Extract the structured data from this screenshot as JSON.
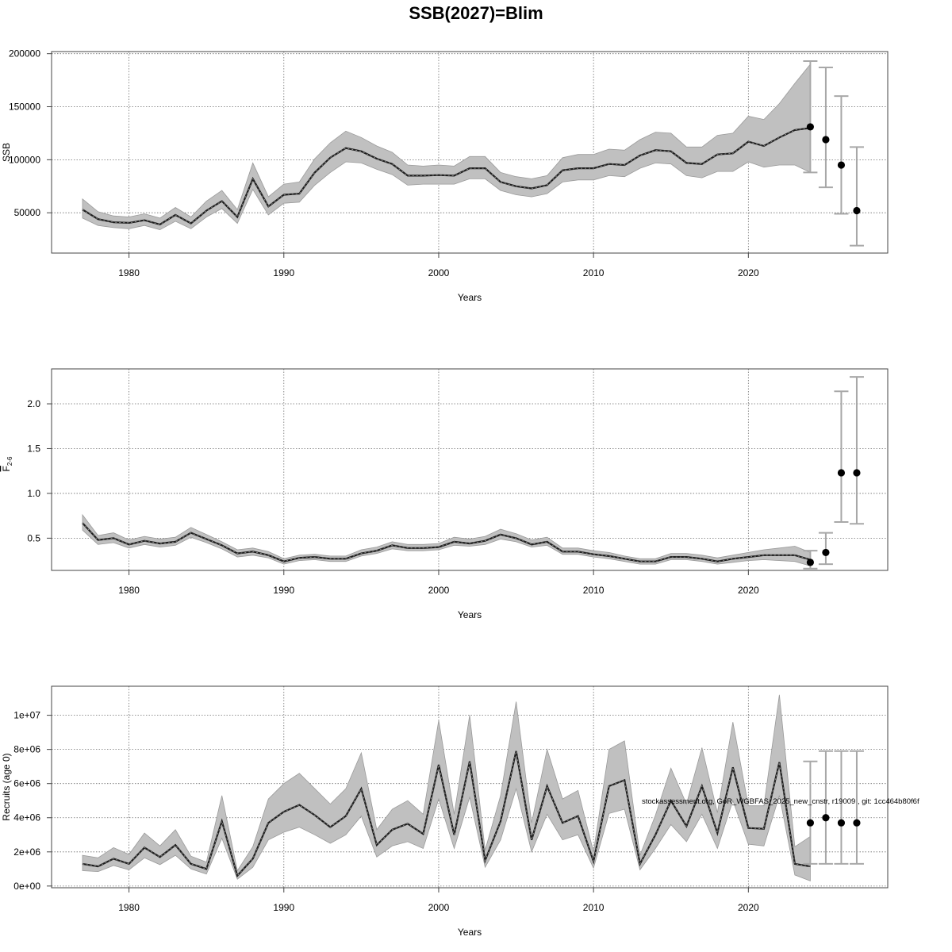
{
  "title": "SSB(2027)=Blim",
  "footnote": "stockassessment.org, GoR_WGBFAS_2025_new_cnstr, r19009 , git: 1cc464b80f6f",
  "chart_data": [
    {
      "type": "line",
      "ylabel": "SSB",
      "xlabel": "Years",
      "xlim": [
        1975,
        2029
      ],
      "ylim": [
        12000,
        202000
      ],
      "x_ticks": [
        1980,
        1990,
        2000,
        2010,
        2020
      ],
      "y_ticks": [
        50000,
        100000,
        150000,
        200000
      ],
      "y_tick_labels": [
        "50000",
        "100000",
        "150000",
        "200000"
      ],
      "grid": true,
      "years": [
        1977,
        1978,
        1979,
        1980,
        1981,
        1982,
        1983,
        1984,
        1985,
        1986,
        1987,
        1988,
        1989,
        1990,
        1991,
        1992,
        1993,
        1994,
        1995,
        1996,
        1997,
        1998,
        1999,
        2000,
        2001,
        2002,
        2003,
        2004,
        2005,
        2006,
        2007,
        2008,
        2009,
        2010,
        2011,
        2012,
        2013,
        2014,
        2015,
        2016,
        2017,
        2018,
        2019,
        2020,
        2021,
        2022,
        2023,
        2024
      ],
      "estimate": [
        53000,
        44000,
        41000,
        40500,
        43000,
        39000,
        48000,
        40000,
        52000,
        61000,
        46000,
        82000,
        56000,
        67000,
        68000,
        88000,
        102000,
        111000,
        108000,
        101000,
        96000,
        85000,
        85000,
        85500,
        85000,
        92000,
        92000,
        79000,
        75000,
        73000,
        76000,
        90000,
        92000,
        92000,
        96000,
        95000,
        104000,
        109000,
        108000,
        97000,
        96000,
        105000,
        106000,
        117000,
        113000,
        121000,
        128000,
        130000
      ],
      "lower": [
        45000,
        38000,
        36000,
        35000,
        38000,
        34000,
        42000,
        35000,
        46000,
        54000,
        40000,
        72000,
        48000,
        59000,
        60000,
        76000,
        88000,
        98000,
        97000,
        91000,
        86000,
        76000,
        77000,
        77000,
        77000,
        82000,
        82000,
        71000,
        67000,
        65000,
        68000,
        79000,
        81000,
        81000,
        85000,
        84000,
        92000,
        97000,
        96000,
        85000,
        83000,
        89000,
        89000,
        98000,
        93000,
        95000,
        95000,
        88000
      ],
      "upper": [
        63000,
        51000,
        47000,
        46000,
        49000,
        45000,
        55000,
        46000,
        61000,
        71000,
        53000,
        97000,
        65000,
        77000,
        79000,
        101000,
        116000,
        127000,
        121000,
        113000,
        107000,
        95000,
        94000,
        95000,
        94000,
        103000,
        103000,
        88000,
        84000,
        82000,
        85000,
        102000,
        105000,
        105000,
        110000,
        109000,
        119000,
        126000,
        125000,
        112000,
        112000,
        123000,
        125000,
        141000,
        138000,
        153000,
        172000,
        190000
      ],
      "forecast": {
        "years": [
          2024,
          2025,
          2026,
          2027
        ],
        "median": [
          131000,
          119000,
          95000,
          52000
        ],
        "lower": [
          88000,
          74000,
          49000,
          19000
        ],
        "upper": [
          193000,
          187000,
          160000,
          112000
        ]
      }
    },
    {
      "type": "line",
      "ylabel": "F2-6",
      "ylabel_main": "F",
      "ylabel_sub": "2-6",
      "xlabel": "Years",
      "xlim": [
        1975,
        2029
      ],
      "ylim": [
        0.14,
        2.39
      ],
      "x_ticks": [
        1980,
        1990,
        2000,
        2010,
        2020
      ],
      "y_ticks": [
        0.5,
        1.0,
        1.5,
        2.0
      ],
      "y_tick_labels": [
        "0.5",
        "1.0",
        "1.5",
        "2.0"
      ],
      "grid": true,
      "years": [
        1977,
        1978,
        1979,
        1980,
        1981,
        1982,
        1983,
        1984,
        1985,
        1986,
        1987,
        1988,
        1989,
        1990,
        1991,
        1992,
        1993,
        1994,
        1995,
        1996,
        1997,
        1998,
        1999,
        2000,
        2001,
        2002,
        2003,
        2004,
        2005,
        2006,
        2007,
        2008,
        2009,
        2010,
        2011,
        2012,
        2013,
        2014,
        2015,
        2016,
        2017,
        2018,
        2019,
        2020,
        2021,
        2022,
        2023,
        2024
      ],
      "estimate": [
        0.67,
        0.48,
        0.5,
        0.43,
        0.47,
        0.44,
        0.46,
        0.56,
        0.49,
        0.42,
        0.33,
        0.35,
        0.31,
        0.24,
        0.28,
        0.29,
        0.27,
        0.27,
        0.33,
        0.36,
        0.42,
        0.39,
        0.39,
        0.4,
        0.46,
        0.44,
        0.47,
        0.54,
        0.5,
        0.43,
        0.46,
        0.35,
        0.35,
        0.32,
        0.3,
        0.27,
        0.24,
        0.24,
        0.29,
        0.29,
        0.27,
        0.24,
        0.27,
        0.29,
        0.31,
        0.31,
        0.31,
        0.26
      ],
      "lower": [
        0.59,
        0.43,
        0.45,
        0.39,
        0.43,
        0.4,
        0.42,
        0.51,
        0.45,
        0.38,
        0.29,
        0.31,
        0.28,
        0.21,
        0.25,
        0.26,
        0.24,
        0.24,
        0.3,
        0.33,
        0.38,
        0.36,
        0.36,
        0.37,
        0.42,
        0.41,
        0.43,
        0.49,
        0.46,
        0.4,
        0.42,
        0.32,
        0.32,
        0.29,
        0.27,
        0.24,
        0.21,
        0.21,
        0.26,
        0.26,
        0.24,
        0.21,
        0.23,
        0.25,
        0.26,
        0.25,
        0.24,
        0.19
      ],
      "upper": [
        0.76,
        0.53,
        0.56,
        0.48,
        0.52,
        0.49,
        0.51,
        0.62,
        0.54,
        0.46,
        0.37,
        0.39,
        0.35,
        0.27,
        0.31,
        0.32,
        0.3,
        0.3,
        0.37,
        0.4,
        0.46,
        0.43,
        0.43,
        0.44,
        0.51,
        0.49,
        0.52,
        0.6,
        0.55,
        0.48,
        0.51,
        0.39,
        0.39,
        0.36,
        0.34,
        0.3,
        0.27,
        0.27,
        0.33,
        0.33,
        0.31,
        0.28,
        0.31,
        0.34,
        0.37,
        0.39,
        0.41,
        0.34
      ],
      "forecast": {
        "years": [
          2024,
          2025,
          2026,
          2027
        ],
        "median": [
          0.23,
          0.34,
          1.23,
          1.23
        ],
        "lower": [
          0.16,
          0.21,
          0.68,
          0.66
        ],
        "upper": [
          0.36,
          0.56,
          2.14,
          2.3
        ]
      }
    },
    {
      "type": "line",
      "ylabel": "Recruits (age 0)",
      "xlabel": "Years",
      "xlim": [
        1975,
        2029
      ],
      "ylim": [
        -100000,
        11700000
      ],
      "x_ticks": [
        1980,
        1990,
        2000,
        2010,
        2020
      ],
      "y_ticks": [
        0,
        2000000,
        4000000,
        6000000,
        8000000,
        10000000
      ],
      "y_tick_labels": [
        "0e+00",
        "2e+06",
        "4e+06",
        "6e+06",
        "8e+06",
        "1e+07"
      ],
      "grid": true,
      "years": [
        1977,
        1978,
        1979,
        1980,
        1981,
        1982,
        1983,
        1984,
        1985,
        1986,
        1987,
        1988,
        1989,
        1990,
        1991,
        1992,
        1993,
        1994,
        1995,
        1996,
        1997,
        1998,
        1999,
        2000,
        2001,
        2002,
        2003,
        2004,
        2005,
        2006,
        2007,
        2008,
        2009,
        2010,
        2011,
        2012,
        2013,
        2014,
        2015,
        2016,
        2017,
        2018,
        2019,
        2020,
        2021,
        2022,
        2023,
        2024
      ],
      "estimate": [
        1300000,
        1150000,
        1600000,
        1300000,
        2250000,
        1700000,
        2400000,
        1300000,
        1000000,
        3800000,
        600000,
        1600000,
        3700000,
        4350000,
        4750000,
        4150000,
        3450000,
        4100000,
        5700000,
        2400000,
        3300000,
        3650000,
        3050000,
        7100000,
        3000000,
        7300000,
        1500000,
        3800000,
        7900000,
        2700000,
        5850000,
        3700000,
        4100000,
        1450000,
        5850000,
        6200000,
        1300000,
        3000000,
        5000000,
        3500000,
        5850000,
        3100000,
        6950000,
        3400000,
        3350000,
        7250000,
        1300000,
        1150000
      ],
      "lower": [
        900000,
        850000,
        1200000,
        950000,
        1650000,
        1250000,
        1800000,
        1000000,
        700000,
        2800000,
        400000,
        1100000,
        2700000,
        3150000,
        3450000,
        3000000,
        2500000,
        3000000,
        4100000,
        1700000,
        2350000,
        2600000,
        2200000,
        5100000,
        2200000,
        5200000,
        1100000,
        2700000,
        5700000,
        2000000,
        4200000,
        2700000,
        3000000,
        1050000,
        4250000,
        4500000,
        950000,
        2200000,
        3600000,
        2600000,
        4200000,
        2200000,
        5000000,
        2450000,
        2350000,
        5300000,
        650000,
        300000
      ],
      "upper": [
        1800000,
        1650000,
        2250000,
        1850000,
        3100000,
        2350000,
        3300000,
        1750000,
        1400000,
        5300000,
        900000,
        2300000,
        5100000,
        6000000,
        6600000,
        5700000,
        4800000,
        5700000,
        7800000,
        3300000,
        4500000,
        5000000,
        4200000,
        9700000,
        4200000,
        10000000,
        2100000,
        5300000,
        10800000,
        3700000,
        8000000,
        5100000,
        5600000,
        2000000,
        8000000,
        8500000,
        1800000,
        4150000,
        6900000,
        4800000,
        8100000,
        4300000,
        9600000,
        4700000,
        4700000,
        11200000,
        2300000,
        2900000
      ],
      "forecast": {
        "years": [
          2024,
          2025,
          2026,
          2027
        ],
        "median": [
          3700000,
          4000000,
          3700000,
          3700000
        ],
        "lower": [
          1300000,
          1300000,
          1300000,
          1300000
        ],
        "upper": [
          7300000,
          7900000,
          7900000,
          7900000
        ]
      }
    }
  ]
}
